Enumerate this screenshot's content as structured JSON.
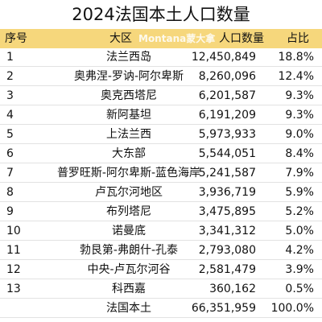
{
  "title": "2024法国本土人口数量",
  "watermark": "Montana蒙大拿",
  "header": {
    "no": "序号",
    "region": "大区",
    "population": "人口数量",
    "share": "占比"
  },
  "rows": [
    {
      "no": "1",
      "region": "法兰西岛",
      "population": "12,450,849",
      "share": "18.8%"
    },
    {
      "no": "2",
      "region": "奥弗涅-罗讷-阿尔卑斯",
      "population": "8,260,096",
      "share": "12.4%"
    },
    {
      "no": "3",
      "region": "奥克西塔尼",
      "population": "6,201,587",
      "share": "9.3%"
    },
    {
      "no": "4",
      "region": "新阿基坦",
      "population": "6,191,209",
      "share": "9.3%"
    },
    {
      "no": "5",
      "region": "上法兰西",
      "population": "5,973,933",
      "share": "9.0%"
    },
    {
      "no": "6",
      "region": "大东部",
      "population": "5,544,051",
      "share": "8.4%"
    },
    {
      "no": "7",
      "region": "普罗旺斯-阿尔卑斯-蓝色海岸",
      "population": "5,241,587",
      "share": "7.9%"
    },
    {
      "no": "8",
      "region": "卢瓦尔河地区",
      "population": "3,936,719",
      "share": "5.9%"
    },
    {
      "no": "9",
      "region": "布列塔尼",
      "population": "3,475,895",
      "share": "5.2%"
    },
    {
      "no": "10",
      "region": "诺曼底",
      "population": "3,341,312",
      "share": "5.0%"
    },
    {
      "no": "11",
      "region": "勃艮第-弗朗什-孔泰",
      "population": "2,793,080",
      "share": "4.2%"
    },
    {
      "no": "12",
      "region": "中央-卢瓦尔河谷",
      "population": "2,581,479",
      "share": "3.9%"
    },
    {
      "no": "13",
      "region": "科西嘉",
      "population": "360,162",
      "share": "0.5%"
    },
    {
      "region": "法国本土",
      "population": "66,351,959",
      "share": "100.0%"
    }
  ]
}
